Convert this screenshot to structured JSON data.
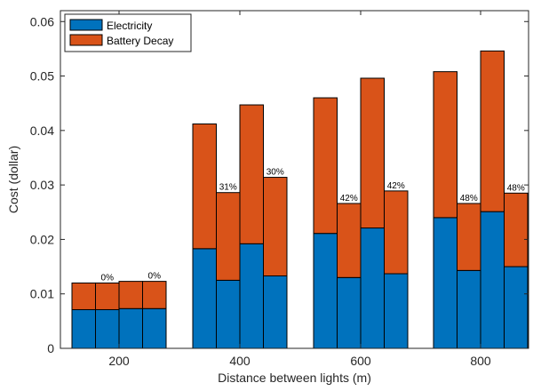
{
  "chart_data": {
    "type": "bar",
    "stacked": true,
    "title": "",
    "xlabel": "Distance between lights (m)",
    "ylabel": "Cost (dollar)",
    "ylim": [
      0,
      0.062
    ],
    "yticks": [
      0,
      0.01,
      0.02,
      0.03,
      0.04,
      0.05,
      0.06
    ],
    "ytick_labels": [
      "0",
      "0.01",
      "0.02",
      "0.03",
      "0.04",
      "0.05",
      "0.06"
    ],
    "groups": [
      "200",
      "400",
      "600",
      "800"
    ],
    "bars_per_group": 4,
    "series": [
      {
        "name": "Electricity",
        "color": "#0072BD",
        "values": [
          [
            0.0071,
            0.0071,
            0.0073,
            0.0073
          ],
          [
            0.0183,
            0.0125,
            0.0192,
            0.0133
          ],
          [
            0.0211,
            0.013,
            0.0221,
            0.0137
          ],
          [
            0.024,
            0.0143,
            0.0251,
            0.015
          ]
        ]
      },
      {
        "name": "Battery Decay",
        "color": "#D95319",
        "values": [
          [
            0.0049,
            0.0049,
            0.005,
            0.005
          ],
          [
            0.0229,
            0.0161,
            0.0255,
            0.0181
          ],
          [
            0.0249,
            0.0136,
            0.0275,
            0.0152
          ],
          [
            0.0268,
            0.0123,
            0.0295,
            0.0135
          ]
        ]
      }
    ],
    "annotations": [
      [
        "",
        "0%",
        "",
        "0%"
      ],
      [
        "",
        "31%",
        "",
        "30%"
      ],
      [
        "",
        "42%",
        "",
        "42%"
      ],
      [
        "",
        "48%",
        "",
        "48%"
      ]
    ],
    "legend": {
      "position": "top-left",
      "entries": [
        "Electricity",
        "Battery Decay"
      ]
    },
    "grid": false,
    "box": true
  }
}
